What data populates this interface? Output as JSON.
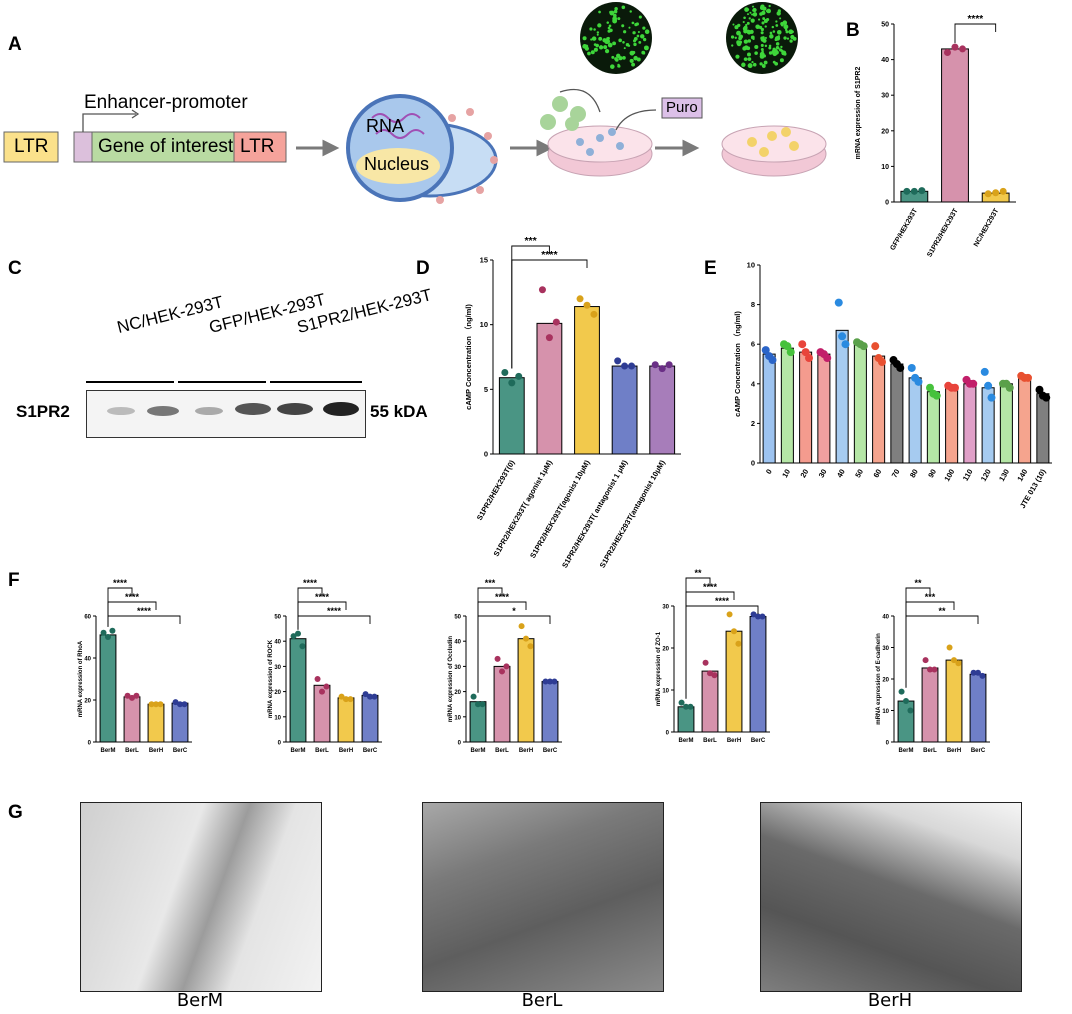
{
  "panel_labels": {
    "A": "A",
    "B": "B",
    "C": "C",
    "D": "D",
    "E": "E",
    "F": "F",
    "G": "G"
  },
  "panelA": {
    "ltr_left": "LTR",
    "enhancer": "Enhancer-promoter",
    "gene": "Gene of interest",
    "ltr_right": "LTR",
    "rna": "RNA",
    "nucleus": "Nucleus",
    "puro": "Puro",
    "colors": {
      "ltr_left": "#fbe18b",
      "gene": "#b9dba2",
      "ltr_right": "#f5a39b",
      "small_box": "#dcc0dc",
      "cell": "#a9c8ec",
      "nucleus": "#f8e7a6",
      "puro": "#dcc0e8"
    }
  },
  "panelC": {
    "lanes": [
      "NC/HEK-293T",
      "GFP/HEK-293T",
      "S1PR2/HEK-293T"
    ],
    "protein": "S1PR2",
    "size": "55 kDA"
  },
  "panelG": {
    "captions": [
      "BerM",
      "BerL",
      "BerH"
    ]
  },
  "chart_data": [
    {
      "id": "B",
      "type": "bar",
      "ylabel": "mRNA expression of S1PR2",
      "categories": [
        "GFP/HEK293T",
        "S1PR2/HEK293T",
        "NC/HEK293T"
      ],
      "values": [
        3,
        43,
        2.5
      ],
      "points": [
        [
          3,
          3,
          3.2
        ],
        [
          42,
          43.5,
          43
        ],
        [
          2.3,
          2.6,
          3
        ]
      ],
      "colors": [
        "#4a9584",
        "#d692ac",
        "#f2c94c"
      ],
      "ylim": [
        0,
        50
      ],
      "yticks": [
        0,
        10,
        20,
        30,
        40,
        50
      ],
      "significance": [
        {
          "from": 1,
          "to": 2,
          "label": "****"
        }
      ]
    },
    {
      "id": "D",
      "type": "bar",
      "ylabel": "cAMP Concentration （ng/ml)",
      "categories": [
        "S1PR2/HEK293T(0)",
        "S1PR2/HEK293T( agonist 1μM)",
        "S1PR2/HEK293T(agonist 10μM)",
        "S1PR2/HEK293T( antagonist 1 μM)",
        "S1PR2/HEK293T(antagonist 10μM)"
      ],
      "values": [
        5.9,
        10.1,
        11.4,
        6.8,
        6.8
      ],
      "points": [
        [
          6.3,
          5.5,
          6
        ],
        [
          12.7,
          9,
          10.2
        ],
        [
          12,
          11.5,
          10.8
        ],
        [
          7.2,
          6.8,
          6.8
        ],
        [
          6.9,
          6.6,
          6.9
        ]
      ],
      "colors": [
        "#4a9584",
        "#d692ac",
        "#f2c94c",
        "#6f7fc7",
        "#a77dba"
      ],
      "ylim": [
        0,
        15
      ],
      "yticks": [
        0,
        5,
        10,
        15
      ],
      "significance": [
        {
          "from": 0,
          "to": 1,
          "label": "***"
        },
        {
          "from": 0,
          "to": 2,
          "label": "****"
        }
      ]
    },
    {
      "id": "E",
      "type": "bar",
      "ylabel": "cAMP Concentration （ng/ml)",
      "categories": [
        "0",
        "10",
        "20",
        "30",
        "40",
        "50",
        "60",
        "70",
        "80",
        "90",
        "100",
        "110",
        "120",
        "130",
        "140",
        "JTE 013 (10)"
      ],
      "values": [
        5.5,
        5.8,
        5.6,
        5.5,
        6.7,
        6,
        5.4,
        5,
        4.3,
        3.6,
        3.9,
        4,
        3.8,
        4,
        4.3,
        3.5
      ],
      "points": [
        [
          5.7,
          5.4,
          5.2
        ],
        [
          6,
          5.9,
          5.6
        ],
        [
          6,
          5.6,
          5.3
        ],
        [
          5.6,
          5.5,
          5.3
        ],
        [
          8.1,
          6.4,
          6
        ],
        [
          6.1,
          6,
          5.9
        ],
        [
          5.9,
          5.3,
          5.1
        ],
        [
          5.2,
          5,
          4.8
        ],
        [
          4.8,
          4.3,
          4.1
        ],
        [
          3.8,
          3.5,
          3.4
        ],
        [
          3.9,
          3.8,
          3.8
        ],
        [
          4.2,
          4,
          4
        ],
        [
          4.6,
          3.9,
          3.3
        ],
        [
          4,
          4,
          3.8
        ],
        [
          4.4,
          4.3,
          4.3
        ],
        [
          3.7,
          3.4,
          3.3
        ]
      ],
      "colors": [
        "#9dc3f0",
        "#b5e6a6",
        "#f49b8e",
        "#f0a0a0",
        "#a6cbf0",
        "#b5e6a6",
        "#f5a48e",
        "#7f7f7f",
        "#a6cbf0",
        "#b5e6a6",
        "#f5a48e",
        "#e0a0c8",
        "#a6cbf0",
        "#b5e6a6",
        "#f5a48e",
        "#7f7f7f"
      ],
      "pointColors": [
        "#2a64c8",
        "#46c23c",
        "#e8443b",
        "#c21f6a",
        "#2a8ae0",
        "#5aa04a",
        "#e85030",
        "#000000",
        "#2a8ae0",
        "#46c23c",
        "#e8443b",
        "#c21f6a",
        "#2a8ae0",
        "#5aa04a",
        "#e85030",
        "#000000"
      ],
      "ylim": [
        0,
        10
      ],
      "yticks": [
        0,
        2,
        4,
        6,
        8,
        10
      ]
    },
    {
      "id": "F1",
      "type": "bar",
      "ylabel": "mRNA expression of RhoA",
      "categories": [
        "BerM",
        "BerL",
        "BerH",
        "BerC"
      ],
      "values": [
        51,
        21.5,
        18,
        18.5
      ],
      "points": [
        [
          52,
          50,
          53
        ],
        [
          22,
          21,
          22
        ],
        [
          18,
          18,
          18
        ],
        [
          19,
          18,
          18
        ]
      ],
      "colors": [
        "#4a9584",
        "#d692ac",
        "#f2c94c",
        "#6f7fc7"
      ],
      "ylim": [
        0,
        60
      ],
      "yticks": [
        0,
        20,
        40,
        60
      ],
      "significance": [
        {
          "from": 0,
          "to": 1,
          "label": "****"
        },
        {
          "from": 0,
          "to": 2,
          "label": "****"
        },
        {
          "from": 0,
          "to": 3,
          "label": "****"
        }
      ]
    },
    {
      "id": "F2",
      "type": "bar",
      "ylabel": "mRNA expression of ROCK",
      "categories": [
        "BerM",
        "BerL",
        "BerH",
        "BerC"
      ],
      "values": [
        41,
        22.5,
        17.5,
        18.5
      ],
      "points": [
        [
          42,
          43,
          38
        ],
        [
          25,
          20,
          22
        ],
        [
          18,
          17,
          17
        ],
        [
          19,
          18,
          18
        ]
      ],
      "colors": [
        "#4a9584",
        "#d692ac",
        "#f2c94c",
        "#6f7fc7"
      ],
      "ylim": [
        0,
        50
      ],
      "yticks": [
        0,
        10,
        20,
        30,
        40,
        50
      ],
      "significance": [
        {
          "from": 0,
          "to": 1,
          "label": "****"
        },
        {
          "from": 0,
          "to": 2,
          "label": "****"
        },
        {
          "from": 0,
          "to": 3,
          "label": "****"
        }
      ]
    },
    {
      "id": "F3",
      "type": "bar",
      "ylabel": "mRNA expression of Occludin",
      "categories": [
        "BerM",
        "BerL",
        "BerH",
        "BerC"
      ],
      "values": [
        16,
        30,
        41,
        24
      ],
      "points": [
        [
          18,
          15,
          15
        ],
        [
          33,
          28,
          30
        ],
        [
          46,
          41,
          38
        ],
        [
          24,
          24,
          24
        ]
      ],
      "colors": [
        "#4a9584",
        "#d692ac",
        "#f2c94c",
        "#6f7fc7"
      ],
      "ylim": [
        0,
        50
      ],
      "yticks": [
        0,
        10,
        20,
        30,
        40,
        50
      ],
      "significance": [
        {
          "from": 0,
          "to": 1,
          "label": "***"
        },
        {
          "from": 0,
          "to": 2,
          "label": "****"
        },
        {
          "from": 0,
          "to": 3,
          "label": "*"
        }
      ]
    },
    {
      "id": "F4",
      "type": "bar",
      "ylabel": "mRNA expression of ZO-1",
      "categories": [
        "BerM",
        "BerL",
        "BerH",
        "BerC"
      ],
      "values": [
        6,
        14.5,
        24,
        27.5
      ],
      "points": [
        [
          7,
          6,
          6
        ],
        [
          16.5,
          14,
          13.5
        ],
        [
          28,
          24,
          21
        ],
        [
          28,
          27.5,
          27.5
        ]
      ],
      "colors": [
        "#4a9584",
        "#d692ac",
        "#f2c94c",
        "#6f7fc7"
      ],
      "ylim": [
        0,
        30
      ],
      "yticks": [
        0,
        10,
        20,
        30
      ],
      "significance": [
        {
          "from": 0,
          "to": 1,
          "label": "**"
        },
        {
          "from": 0,
          "to": 2,
          "label": "****"
        },
        {
          "from": 0,
          "to": 3,
          "label": "****"
        }
      ]
    },
    {
      "id": "F5",
      "type": "bar",
      "ylabel": "mRNA expression of E-cadherin",
      "categories": [
        "BerM",
        "BerL",
        "BerH",
        "BerC"
      ],
      "values": [
        13,
        23.5,
        26,
        21.5
      ],
      "points": [
        [
          16,
          13,
          10
        ],
        [
          26,
          23,
          23
        ],
        [
          30,
          26,
          25
        ],
        [
          22,
          22,
          21
        ]
      ],
      "colors": [
        "#4a9584",
        "#d692ac",
        "#f2c94c",
        "#6f7fc7"
      ],
      "ylim": [
        0,
        40
      ],
      "yticks": [
        0,
        10,
        20,
        30,
        40
      ],
      "significance": [
        {
          "from": 0,
          "to": 1,
          "label": "**"
        },
        {
          "from": 0,
          "to": 2,
          "label": "***"
        },
        {
          "from": 0,
          "to": 3,
          "label": "**"
        }
      ]
    }
  ]
}
